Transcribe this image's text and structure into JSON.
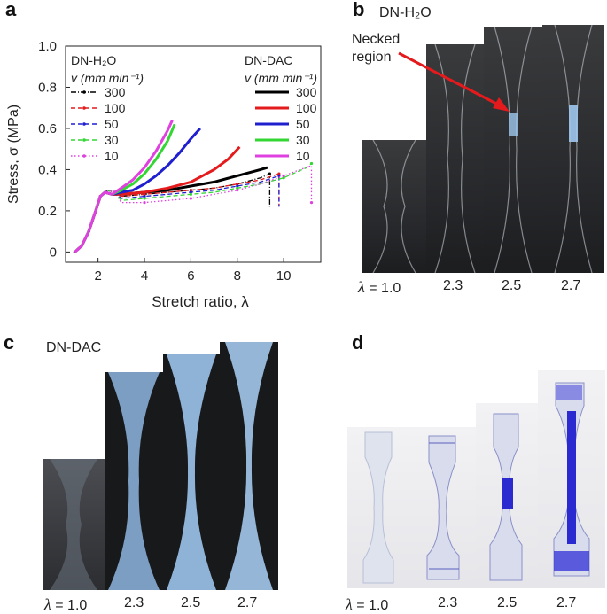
{
  "panels": {
    "a": {
      "letter": "a"
    },
    "b": {
      "letter": "b",
      "label": "DN-H₂O",
      "annotation_line1": "Necked",
      "annotation_line2": "region",
      "lambda_prefix": "λ",
      "lambda_labels": [
        "= 1.0",
        "2.3",
        "2.5",
        "2.7"
      ]
    },
    "c": {
      "letter": "c",
      "label": "DN-DAC",
      "lambda_prefix": "λ",
      "lambda_labels": [
        "= 1.0",
        "2.3",
        "2.5",
        "2.7"
      ]
    },
    "d": {
      "letter": "d",
      "lambda_prefix": "λ",
      "lambda_labels": [
        "= 1.0",
        "2.3",
        "2.5",
        "2.7"
      ]
    }
  },
  "colors": {
    "black": "#000000",
    "red": "#e41a1c",
    "blue": "#1f1fd0",
    "green": "#33d633",
    "magenta": "#e040e0",
    "arrow": "#e41a1c",
    "dye": "#2a2ad0",
    "neck_glow": "#9fc8ee"
  },
  "chart_data": {
    "type": "line",
    "xlabel": "Stretch ratio, λ",
    "ylabel": "Stress, σ (MPa)",
    "xlim": [
      0.6,
      11.6
    ],
    "ylim": [
      -0.05,
      1.0
    ],
    "xticks": [
      2,
      4,
      6,
      8,
      10
    ],
    "yticks": [
      0,
      0.2,
      0.4,
      0.6,
      0.8,
      1.0
    ],
    "ytick_labels": [
      "0",
      "0.2",
      "0.4",
      "0.6",
      "0.8",
      "1.0"
    ],
    "grid": false,
    "legend_h2o": {
      "title": "DN-H₂O",
      "unit": "v (mm min⁻¹)",
      "position": "top-left"
    },
    "legend_dac": {
      "title": "DN-DAC",
      "unit": "v (mm min⁻¹)",
      "position": "top-right"
    },
    "series": [
      {
        "name": "300",
        "group": "DN-DAC",
        "color": "#000000",
        "style": "solid",
        "x": [
          1.0,
          1.3,
          1.6,
          1.9,
          2.1,
          2.3,
          2.6,
          3.0,
          4.0,
          5.0,
          6.0,
          7.0,
          8.0,
          9.0,
          9.3
        ],
        "y": [
          0.0,
          0.03,
          0.1,
          0.2,
          0.27,
          0.29,
          0.28,
          0.28,
          0.29,
          0.3,
          0.32,
          0.34,
          0.37,
          0.4,
          0.41
        ]
      },
      {
        "name": "100",
        "group": "DN-DAC",
        "color": "#e41a1c",
        "style": "solid",
        "x": [
          1.0,
          1.3,
          1.6,
          1.9,
          2.1,
          2.3,
          2.6,
          3.0,
          4.0,
          5.0,
          6.0,
          7.0,
          7.6,
          8.1
        ],
        "y": [
          0.0,
          0.03,
          0.1,
          0.2,
          0.27,
          0.29,
          0.28,
          0.28,
          0.29,
          0.31,
          0.34,
          0.4,
          0.45,
          0.51
        ]
      },
      {
        "name": "50",
        "group": "DN-DAC",
        "color": "#1f1fd0",
        "style": "solid",
        "x": [
          1.0,
          1.3,
          1.6,
          1.9,
          2.1,
          2.3,
          2.6,
          3.0,
          3.5,
          4.0,
          4.5,
          5.0,
          5.5,
          6.0,
          6.4
        ],
        "y": [
          0.0,
          0.03,
          0.1,
          0.2,
          0.27,
          0.29,
          0.28,
          0.29,
          0.3,
          0.33,
          0.37,
          0.42,
          0.48,
          0.55,
          0.6
        ]
      },
      {
        "name": "30",
        "group": "DN-DAC",
        "color": "#33d633",
        "style": "solid",
        "x": [
          1.0,
          1.3,
          1.6,
          1.9,
          2.1,
          2.3,
          2.6,
          3.0,
          3.5,
          4.0,
          4.5,
          5.0,
          5.3
        ],
        "y": [
          0.0,
          0.03,
          0.1,
          0.2,
          0.27,
          0.29,
          0.28,
          0.3,
          0.33,
          0.38,
          0.45,
          0.54,
          0.62
        ]
      },
      {
        "name": "10",
        "group": "DN-DAC",
        "color": "#e040e0",
        "style": "solid",
        "x": [
          1.0,
          1.3,
          1.6,
          1.9,
          2.1,
          2.3,
          2.6,
          3.0,
          3.5,
          4.0,
          4.5,
          5.0,
          5.2
        ],
        "y": [
          0.0,
          0.03,
          0.1,
          0.2,
          0.27,
          0.29,
          0.28,
          0.31,
          0.35,
          0.41,
          0.49,
          0.59,
          0.64
        ]
      },
      {
        "name": "300",
        "group": "DN-H₂O",
        "color": "#000000",
        "style": "dashdot",
        "x": [
          1.0,
          1.3,
          1.6,
          1.9,
          2.1,
          2.4,
          2.7,
          3.0,
          4.0,
          5.0,
          6.0,
          7.0,
          8.0,
          9.0,
          9.4,
          9.4
        ],
        "y": [
          0.0,
          0.03,
          0.1,
          0.2,
          0.27,
          0.3,
          0.29,
          0.27,
          0.28,
          0.29,
          0.3,
          0.31,
          0.33,
          0.36,
          0.38,
          0.22
        ]
      },
      {
        "name": "100",
        "group": "DN-H₂O",
        "color": "#e41a1c",
        "style": "dashed",
        "x": [
          1.0,
          1.3,
          1.6,
          1.9,
          2.1,
          2.4,
          2.7,
          3.0,
          4.0,
          5.0,
          6.0,
          7.0,
          8.0,
          9.0,
          9.8,
          9.8
        ],
        "y": [
          0.0,
          0.03,
          0.1,
          0.2,
          0.27,
          0.3,
          0.29,
          0.27,
          0.28,
          0.29,
          0.3,
          0.31,
          0.33,
          0.35,
          0.38,
          0.22
        ]
      },
      {
        "name": "50",
        "group": "DN-H₂O",
        "color": "#1f1fd0",
        "style": "dashed",
        "x": [
          1.0,
          1.3,
          1.6,
          1.9,
          2.1,
          2.4,
          2.7,
          3.0,
          4.0,
          5.0,
          6.0,
          7.0,
          8.0,
          9.0,
          9.8,
          9.8
        ],
        "y": [
          0.0,
          0.03,
          0.1,
          0.2,
          0.27,
          0.3,
          0.29,
          0.26,
          0.27,
          0.28,
          0.29,
          0.3,
          0.32,
          0.34,
          0.37,
          0.22
        ]
      },
      {
        "name": "30",
        "group": "DN-H₂O",
        "color": "#33d633",
        "style": "dashed",
        "x": [
          1.0,
          1.3,
          1.6,
          1.9,
          2.1,
          2.4,
          2.7,
          3.0,
          4.0,
          5.0,
          6.0,
          7.0,
          8.0,
          9.0,
          10.0,
          11.0,
          11.2
        ],
        "y": [
          0.0,
          0.03,
          0.1,
          0.2,
          0.27,
          0.3,
          0.29,
          0.25,
          0.26,
          0.27,
          0.28,
          0.29,
          0.31,
          0.33,
          0.36,
          0.41,
          0.43
        ]
      },
      {
        "name": "10",
        "group": "DN-H₂O",
        "color": "#e040e0",
        "style": "dotted",
        "x": [
          1.0,
          1.3,
          1.6,
          1.9,
          2.1,
          2.4,
          2.7,
          3.0,
          4.0,
          5.0,
          6.0,
          7.0,
          8.0,
          9.0,
          10.0,
          11.2,
          11.2
        ],
        "y": [
          0.0,
          0.03,
          0.1,
          0.2,
          0.27,
          0.3,
          0.29,
          0.24,
          0.24,
          0.25,
          0.26,
          0.28,
          0.3,
          0.33,
          0.37,
          0.42,
          0.24
        ]
      }
    ]
  }
}
